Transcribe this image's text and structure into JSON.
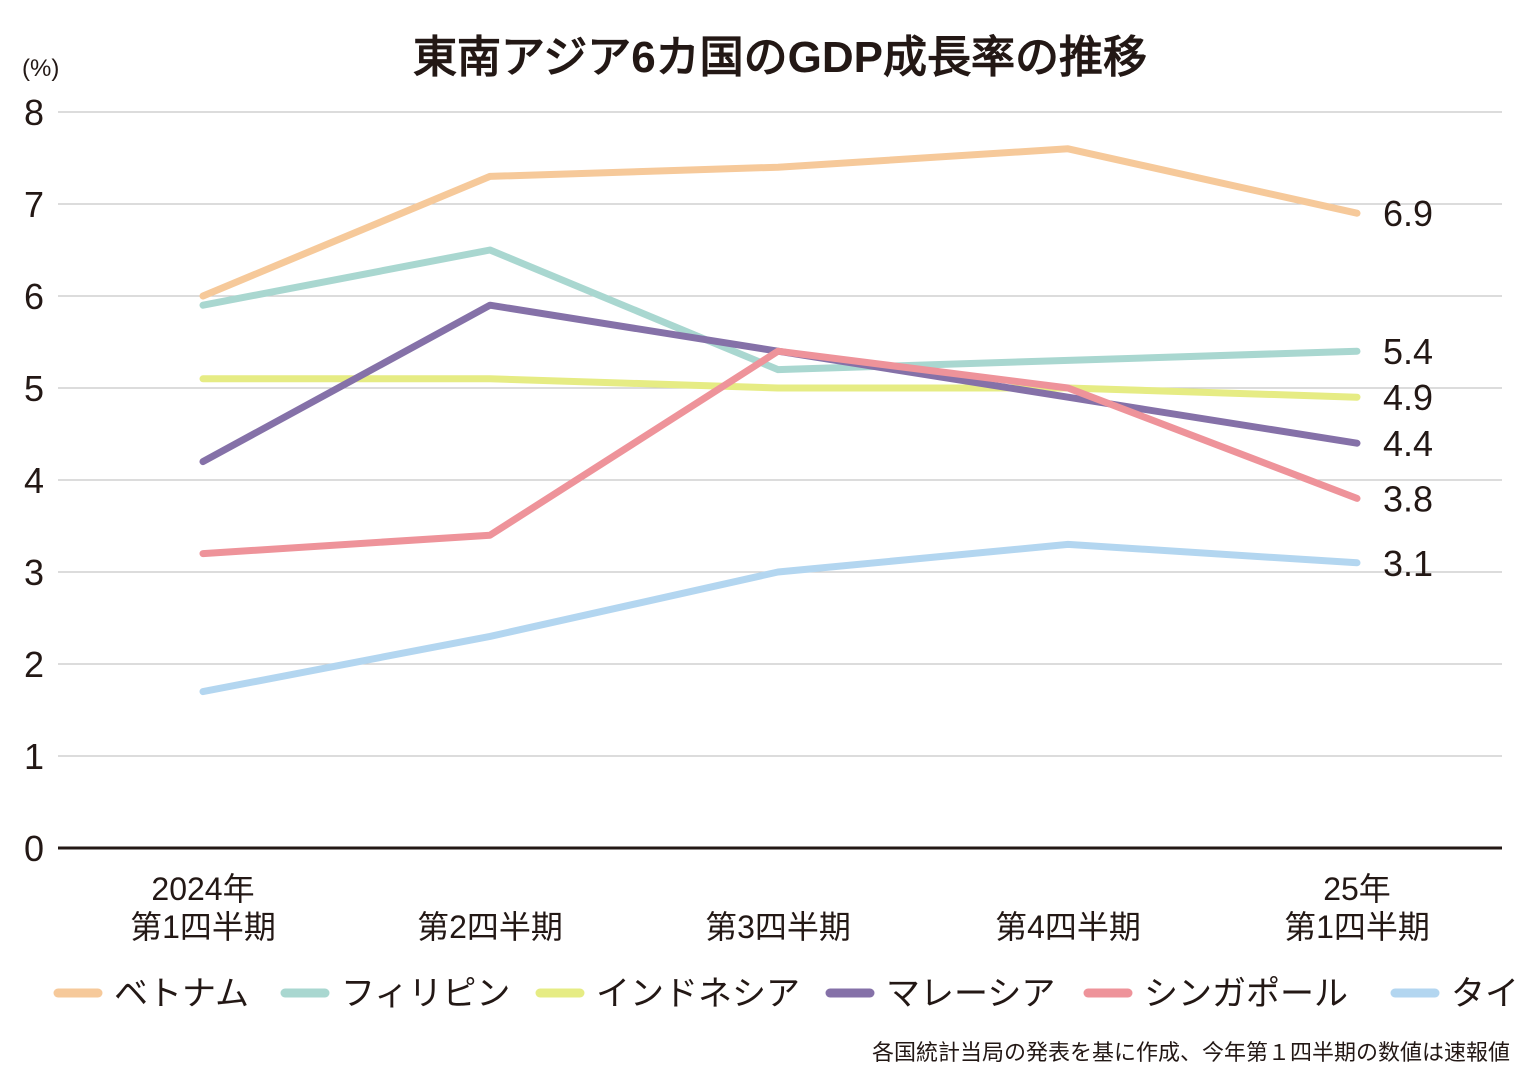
{
  "chart_data": {
    "type": "line",
    "title": "東南アジア6カ国のGDP成長率の推移",
    "ylabel": "(%)",
    "xlabel": "",
    "ylim": [
      0,
      8
    ],
    "yticks": [
      0,
      1,
      2,
      3,
      4,
      5,
      6,
      7,
      8
    ],
    "grid": true,
    "categories": [
      [
        "2024年",
        "第1四半期"
      ],
      [
        "第2四半期"
      ],
      [
        "第3四半期"
      ],
      [
        "第4四半期"
      ],
      [
        "25年",
        "第1四半期"
      ]
    ],
    "series": [
      {
        "name": "ベトナム",
        "color": "#f6c99a",
        "values": [
          6.0,
          7.3,
          7.4,
          7.6,
          6.9
        ],
        "end_label": "6.9"
      },
      {
        "name": "フィリピン",
        "color": "#a9d7d0",
        "values": [
          5.9,
          6.5,
          5.2,
          5.3,
          5.4
        ],
        "end_label": "5.4"
      },
      {
        "name": "インドネシア",
        "color": "#e6ec84",
        "values": [
          5.1,
          5.1,
          5.0,
          5.0,
          4.9
        ],
        "end_label": "4.9"
      },
      {
        "name": "マレーシア",
        "color": "#8571a8",
        "values": [
          4.2,
          5.9,
          5.4,
          4.9,
          4.4
        ],
        "end_label": "4.4"
      },
      {
        "name": "シンガポール",
        "color": "#ee939a",
        "values": [
          3.2,
          3.4,
          5.4,
          5.0,
          3.8
        ],
        "end_label": "3.8"
      },
      {
        "name": "タイ",
        "color": "#b3d6f0",
        "values": [
          1.7,
          2.3,
          3.0,
          3.3,
          3.1
        ],
        "end_label": "3.1"
      }
    ],
    "legend_position": "bottom",
    "source_note": "各国統計当局の発表を基に作成、今年第１四半期の数値は速報値"
  }
}
